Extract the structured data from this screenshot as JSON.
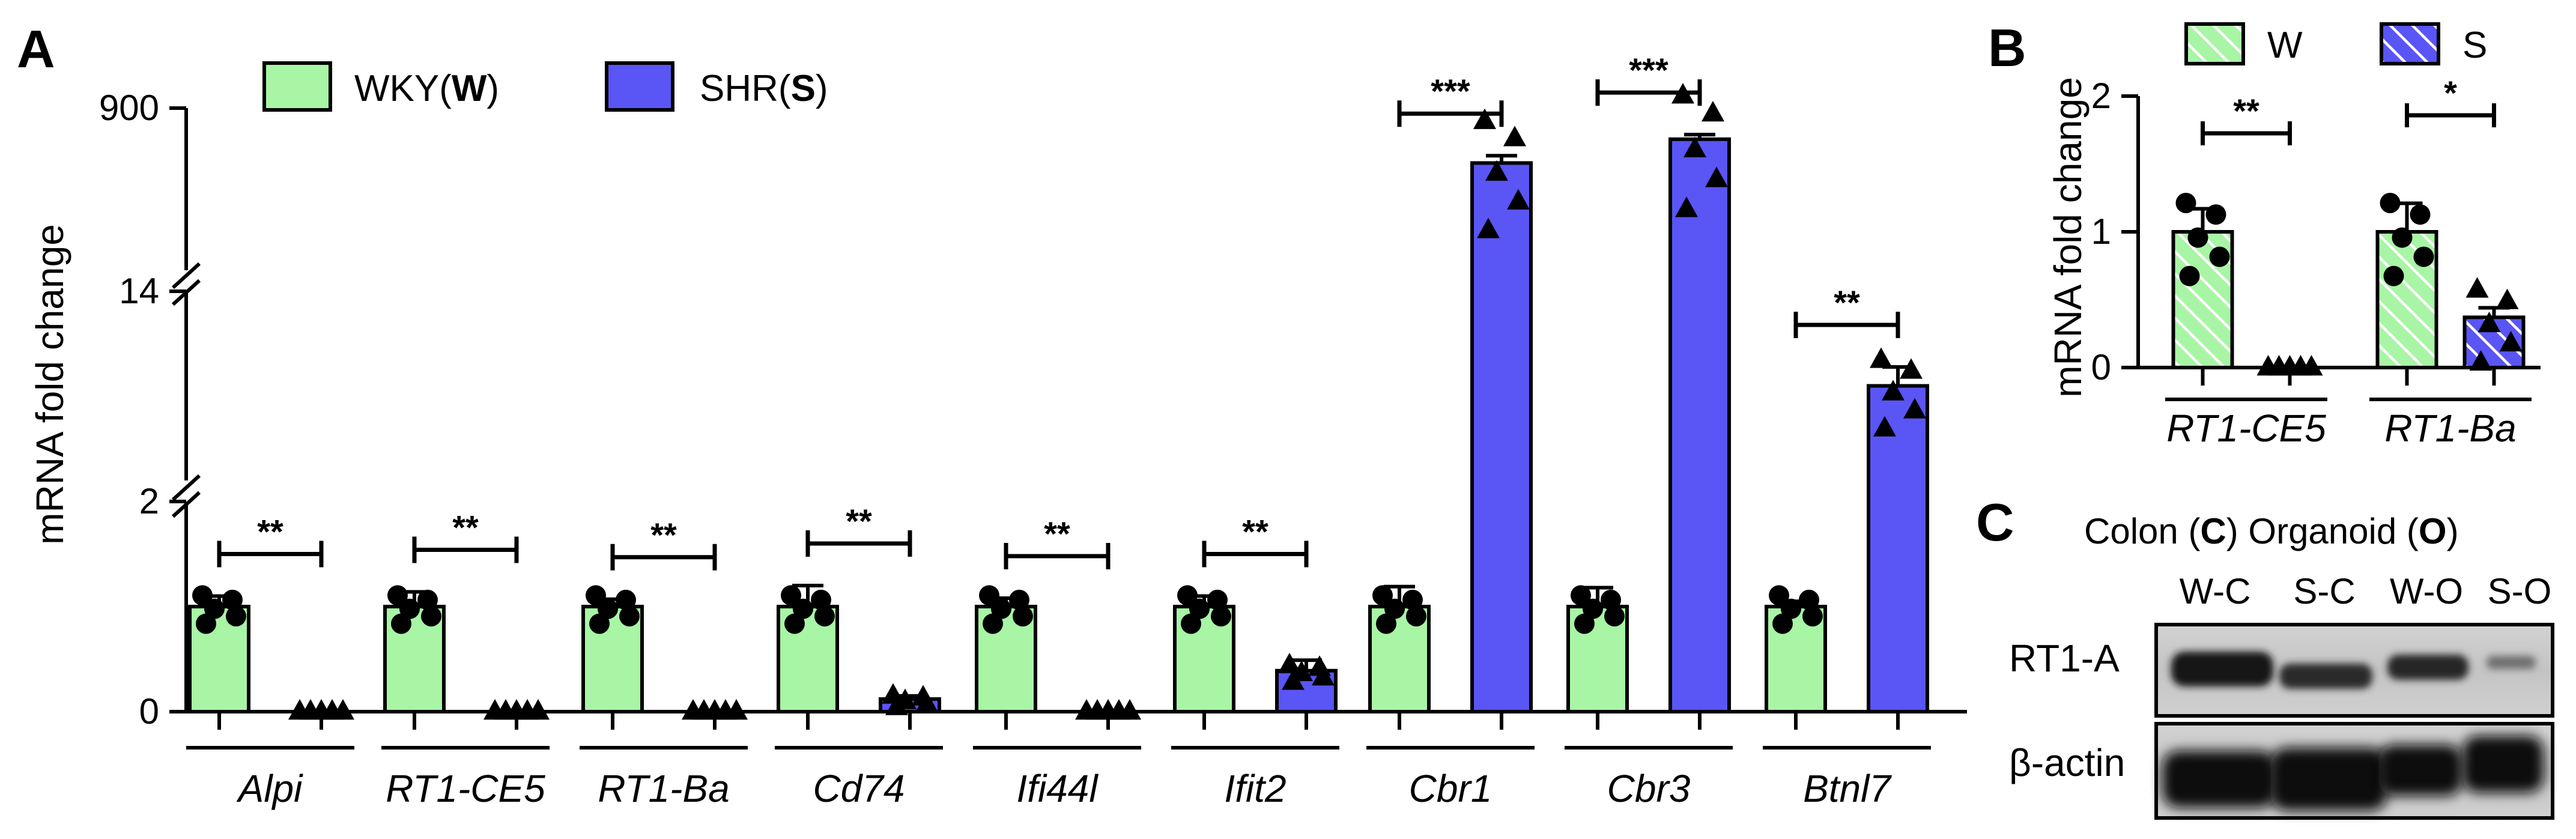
{
  "chart_data": [
    {
      "panel": "A",
      "type": "bar",
      "ylabel": "mRNA fold change",
      "y_axis": {
        "type": "broken",
        "segments": [
          {
            "range": [
              0,
              2
            ],
            "ticks": [
              "0",
              "2"
            ]
          },
          {
            "range": [
              2,
              14
            ],
            "ticks": [
              "14"
            ]
          },
          {
            "range": [
              14,
              900
            ],
            "ticks": [
              "900"
            ]
          }
        ]
      },
      "legend": [
        {
          "key": "W",
          "label_prefix": "WKY(",
          "label_bold": "W",
          "label_suffix": ")",
          "color": "#a8f5a5"
        },
        {
          "key": "S",
          "label_prefix": "SHR(",
          "label_bold": "S",
          "label_suffix": ")",
          "color": "#5a55f5"
        }
      ],
      "categories": [
        "Alpi",
        "RT1-CE5",
        "RT1-Ba",
        "Cd74",
        "Ifi44l",
        "Ifit2",
        "Cbr1",
        "Cbr3",
        "Btnl7"
      ],
      "series": [
        {
          "name": "WKY(W)",
          "color": "#a8f5a5",
          "marker": "circle",
          "values": [
            1.0,
            1.0,
            1.0,
            1.0,
            1.0,
            1.0,
            1.0,
            1.0,
            1.0
          ],
          "sem": [
            0.1,
            0.14,
            0.07,
            0.2,
            0.08,
            0.1,
            0.19,
            0.18,
            0.05
          ]
        },
        {
          "name": "SHR(S)",
          "color": "#5a55f5",
          "marker": "triangle",
          "values": [
            0.0,
            0.0,
            0.0,
            0.12,
            0.0,
            0.39,
            600,
            730,
            8
          ],
          "sem": [
            0.01,
            0.01,
            0.01,
            0.03,
            0.01,
            0.1,
            40,
            25,
            1.2
          ]
        }
      ],
      "significance": [
        "**",
        "**",
        "**",
        "**",
        "**",
        "**",
        "***",
        "***",
        "**"
      ]
    },
    {
      "panel": "B",
      "type": "bar",
      "ylabel": "mRNA fold change",
      "ylim": [
        0,
        2
      ],
      "yticks": [
        "0",
        "1",
        "2"
      ],
      "legend": [
        {
          "key": "W",
          "label": "W",
          "color": "#a8f5a5"
        },
        {
          "key": "S",
          "label": "S",
          "color": "#5a55f5"
        }
      ],
      "categories": [
        "RT1-CE5",
        "RT1-Ba"
      ],
      "series": [
        {
          "name": "W",
          "color": "#a8f5a5",
          "values": [
            1.0,
            1.0
          ],
          "sem": [
            0.17,
            0.21
          ]
        },
        {
          "name": "S",
          "color": "#5a55f5",
          "values": [
            0.0,
            0.37
          ],
          "sem": [
            0.01,
            0.07
          ]
        }
      ],
      "significance": [
        "**",
        "*"
      ]
    }
  ],
  "panelC": {
    "letter": "C",
    "header": {
      "prefix": "Colon (",
      "c": "C",
      "mid": ") Organoid (",
      "o": "O",
      "suffix": ")"
    },
    "lanes": [
      "W-C",
      "S-C",
      "W-O",
      "S-O"
    ],
    "rows": [
      "RT1-A",
      "β-actin"
    ]
  }
}
